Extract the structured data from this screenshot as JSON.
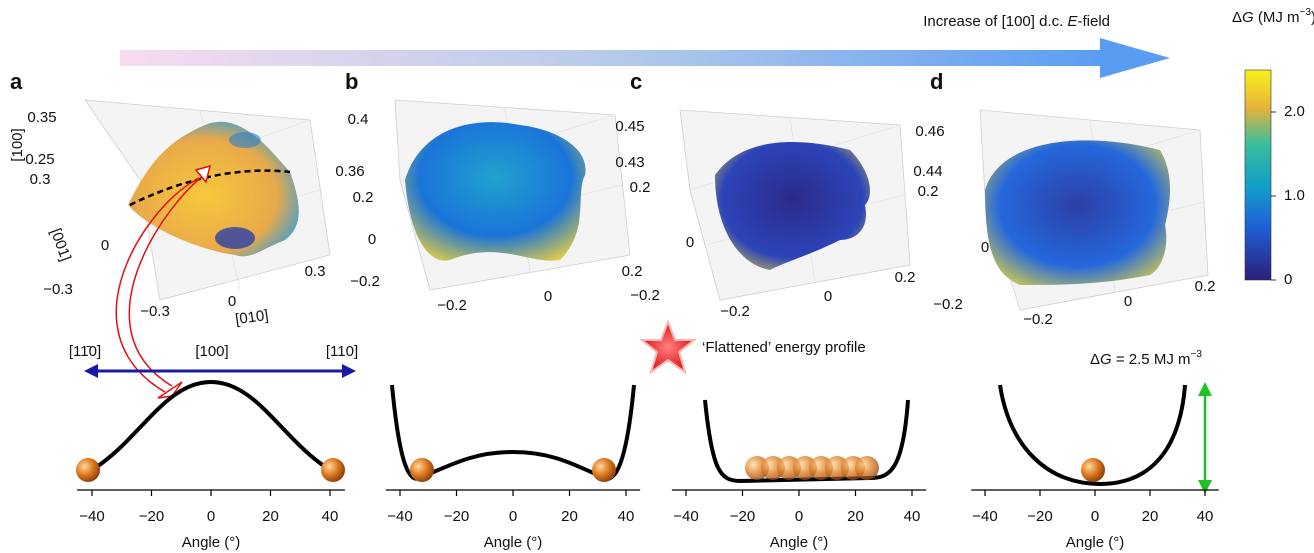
{
  "arrow_label": [
    "Increase of [100] d.c. ",
    "E",
    "-field"
  ],
  "colorbar": {
    "title": [
      "Δ",
      "G",
      " (MJ m",
      "−3",
      ")"
    ],
    "clim": [
      0,
      2.5
    ],
    "ticks": [
      0,
      {
        "value": 1,
        "label": "1.0"
      },
      {
        "value": 2,
        "label": "2.0"
      }
    ]
  },
  "direction_labels": [
    "[11̄0]",
    "[100]",
    "[110]"
  ],
  "flattened": "‘Flattened’ energy profile",
  "barrier": [
    "Δ",
    "G",
    "  = 2.5 MJ m",
    "−3"
  ],
  "panels": [
    {
      "label": "a",
      "surface_ticks": [
        "0.35",
        "0.25",
        "0.3",
        "0",
        "−0.3",
        "−0.3",
        "0",
        "0.3"
      ],
      "axis_names": [
        "[100]",
        "[001]",
        "[010]"
      ],
      "profile": {
        "xlim": [
          -45,
          45
        ],
        "xticks": [
          {
            "value": -40,
            "label": "−40"
          },
          {
            "value": -20,
            "label": "−20"
          },
          0,
          20,
          40
        ],
        "xlabel": "Angle (°)"
      }
    },
    {
      "label": "b",
      "surface_ticks": [
        "0.4",
        "0.36",
        "0.2",
        "0",
        "−0.2",
        "−0.2",
        "0",
        "0.2"
      ],
      "profile": {
        "xlim": [
          -45,
          45
        ],
        "xticks": [
          {
            "value": -40,
            "label": "−40"
          },
          {
            "value": -20,
            "label": "−20"
          },
          0,
          20,
          40
        ],
        "xlabel": "Angle (°)"
      }
    },
    {
      "label": "c",
      "surface_ticks": [
        "0.45",
        "0.43",
        "0.2",
        "0",
        "−0.2",
        "−0.2",
        "0",
        "0.2"
      ],
      "profile": {
        "xlim": [
          -45,
          45
        ],
        "xticks": [
          {
            "value": -40,
            "label": "−40"
          },
          {
            "value": -20,
            "label": "−20"
          },
          0,
          20,
          40
        ],
        "xlabel": "Angle (°)"
      }
    },
    {
      "label": "d",
      "surface_ticks": [
        "0.46",
        "0.44",
        "0.2",
        "0",
        "−0.2",
        "−0.2",
        "0",
        "0.2"
      ],
      "profile": {
        "xlim": [
          -45,
          45
        ],
        "xticks": [
          {
            "value": -40,
            "label": "−40"
          },
          {
            "value": -20,
            "label": "−20"
          },
          0,
          20,
          40
        ],
        "xlabel": "Angle (°)"
      }
    }
  ]
}
